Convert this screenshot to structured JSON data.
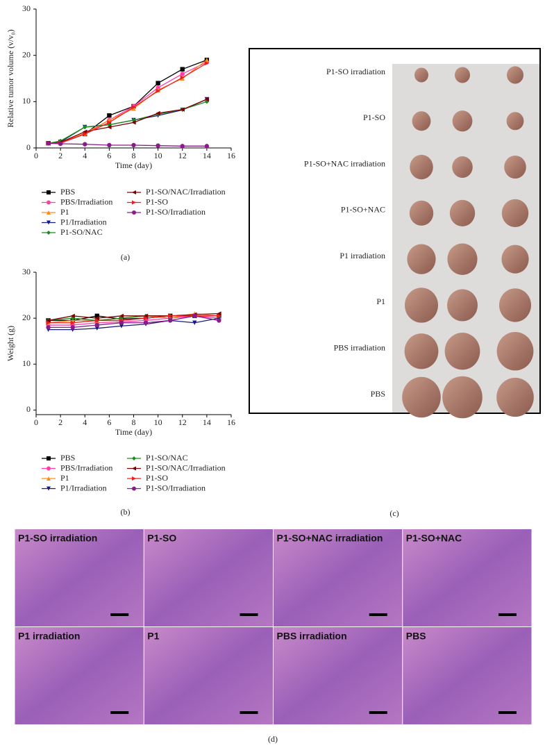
{
  "chart_data": [
    {
      "type": "line",
      "panel": "(a)",
      "x_label": "Time (day)",
      "y_label": "Relative tumor volume (v/v₀)",
      "x": [
        1,
        2,
        4,
        6,
        8,
        10,
        12,
        14
      ],
      "xlim": [
        0,
        16
      ],
      "xticks": [
        0,
        2,
        4,
        6,
        8,
        10,
        12,
        14,
        16
      ],
      "ylim": [
        0,
        30
      ],
      "yticks": [
        0,
        10,
        20,
        30
      ],
      "series": [
        {
          "name": "PBS",
          "color": "#000000",
          "marker": "square",
          "values": [
            1,
            1.2,
            3,
            7,
            9,
            14,
            17,
            19
          ]
        },
        {
          "name": "PBS/Irradiation",
          "color": "#ff3fa8",
          "marker": "circle",
          "values": [
            1,
            1,
            3,
            6,
            9,
            13,
            16,
            18.5
          ]
        },
        {
          "name": "P1",
          "color": "#ff8c1a",
          "marker": "triangle-up",
          "values": [
            1,
            1.1,
            3.2,
            6,
            8.5,
            12.5,
            15,
            19
          ]
        },
        {
          "name": "P1/Irradiation",
          "color": "#1a1a80",
          "marker": "triangle-down",
          "values": [
            1,
            1.3,
            4.5,
            5,
            6,
            7,
            8.2,
            10.5
          ]
        },
        {
          "name": "P1-SO/NAC",
          "color": "#1a8c1a",
          "marker": "diamond",
          "values": [
            1,
            1.5,
            4.5,
            5,
            6,
            7.3,
            8.3,
            10
          ]
        },
        {
          "name": "P1-SO/NAC/Irradiation",
          "color": "#800000",
          "marker": "triangle-left",
          "values": [
            1,
            1.2,
            3.5,
            4.5,
            5.5,
            7.5,
            8.3,
            10.5
          ]
        },
        {
          "name": "P1-SO",
          "color": "#ee1c1c",
          "marker": "triangle-right",
          "values": [
            1,
            1.1,
            3,
            5.5,
            8.8,
            12.3,
            15.2,
            18.3
          ]
        },
        {
          "name": "P1-SO/Irradiation",
          "color": "#8b1a8b",
          "marker": "circle",
          "values": [
            1,
            0.9,
            0.8,
            0.6,
            0.6,
            0.5,
            0.4,
            0.4
          ]
        }
      ]
    },
    {
      "type": "line",
      "panel": "(b)",
      "x_label": "Time (day)",
      "y_label": "Weight (g)",
      "x": [
        1,
        3,
        5,
        7,
        9,
        11,
        13,
        15
      ],
      "xlim": [
        0,
        16
      ],
      "xticks": [
        0,
        2,
        4,
        6,
        8,
        10,
        12,
        14,
        16
      ],
      "ylim": [
        -1,
        30
      ],
      "yticks": [
        0,
        10,
        20,
        30
      ],
      "series": [
        {
          "name": "PBS",
          "color": "#000000",
          "marker": "square",
          "values": [
            19.5,
            19.5,
            20.5,
            19.8,
            20,
            20.5,
            20.5,
            20.5
          ]
        },
        {
          "name": "PBS/Irradiation",
          "color": "#ff3fa8",
          "marker": "circle",
          "values": [
            18.5,
            18.5,
            19,
            19.2,
            19.5,
            20,
            20.5,
            20
          ]
        },
        {
          "name": "P1",
          "color": "#ff8c1a",
          "marker": "triangle-up",
          "values": [
            19,
            19.5,
            19.5,
            20,
            20.5,
            20,
            21,
            20.5
          ]
        },
        {
          "name": "P1/Irradiation",
          "color": "#1a1a80",
          "marker": "triangle-down",
          "values": [
            17.5,
            17.5,
            17.8,
            18.3,
            18.7,
            19.5,
            19,
            20
          ]
        },
        {
          "name": "P1-SO/NAC",
          "color": "#1a8c1a",
          "marker": "diamond",
          "values": [
            19.5,
            20,
            19.5,
            20,
            20.5,
            20.5,
            20.5,
            20.5
          ]
        },
        {
          "name": "P1-SO/NAC/Irradiation",
          "color": "#800000",
          "marker": "triangle-left",
          "values": [
            19.5,
            20.5,
            20,
            20.5,
            20.5,
            20.5,
            20.8,
            21
          ]
        },
        {
          "name": "P1-SO",
          "color": "#ee1c1c",
          "marker": "triangle-right",
          "values": [
            19,
            19,
            19.5,
            19.5,
            20,
            20.5,
            20.5,
            20.5
          ]
        },
        {
          "name": "P1-SO/Irradiation",
          "color": "#8b1a8b",
          "marker": "circle",
          "values": [
            18,
            18,
            18.5,
            19,
            19,
            19.5,
            20.5,
            19.5
          ]
        }
      ]
    }
  ],
  "photo_panel": {
    "label": "(c)",
    "rows": [
      "P1-SO irradiation",
      "P1-SO",
      "P1-SO+NAC irradiation",
      "P1-SO+NAC",
      "P1 irradiation",
      "P1",
      "PBS irradiation",
      "PBS"
    ]
  },
  "histology_panel": {
    "label": "(d)",
    "tiles": [
      "P1-SO irradiation",
      "P1-SO",
      "P1-SO+NAC irradiation",
      "P1-SO+NAC",
      "P1 irradiation",
      "P1",
      "PBS irradiation",
      "PBS"
    ]
  }
}
